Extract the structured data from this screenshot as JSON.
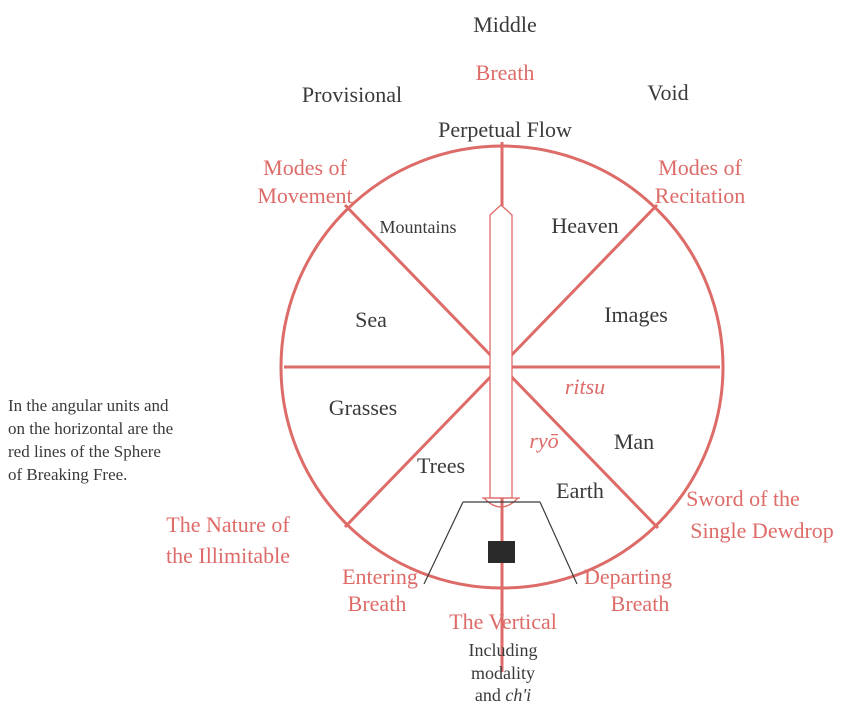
{
  "top_labels": {
    "middle": "Middle",
    "breath": "Breath",
    "provisional": "Provisional",
    "void": "Void",
    "perpetual_flow": "Perpetual Flow"
  },
  "outer_labels": {
    "modes_of_movement": [
      "Modes of",
      "Movement"
    ],
    "modes_of_recitation": [
      "Modes of",
      "Recitation"
    ],
    "sword_of_the_single_dewdrop": [
      "Sword of the",
      "Single Dewdrop"
    ],
    "nature_of_the_illimitable": [
      "The Nature of",
      "the Illimitable"
    ],
    "entering_breath": [
      "Entering",
      "Breath"
    ],
    "departing_breath": [
      "Departing",
      "Breath"
    ],
    "the_vertical": "The Vertical"
  },
  "vertical_note": {
    "line1": "Including",
    "line2": "modality",
    "line3": "and",
    "line3_italic": "ch'i"
  },
  "sectors": {
    "mountains": "Mountains",
    "heaven": "Heaven",
    "sea": "Sea",
    "images": "Images",
    "grasses": "Grasses",
    "man": "Man",
    "trees": "Trees",
    "earth": "Earth"
  },
  "inner_terms": {
    "ritsu": "ritsu",
    "ryo": "ryō"
  },
  "side_note": [
    "In the angular units and",
    "on the horizontal are the",
    "red lines of the Sphere",
    "of Breaking Free."
  ]
}
